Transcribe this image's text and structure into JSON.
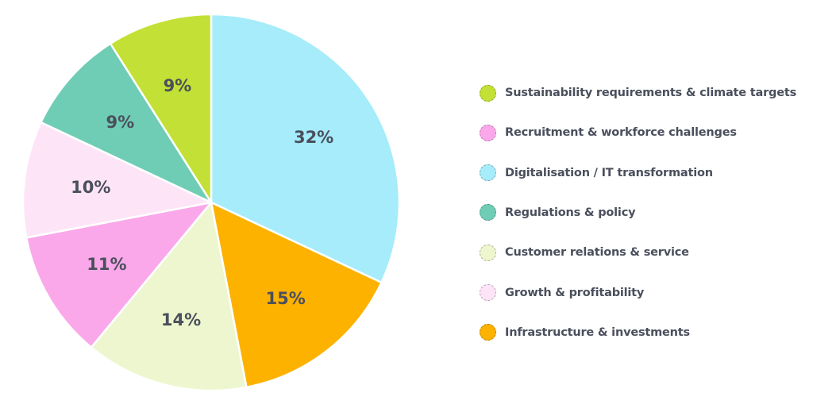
{
  "chart_data": {
    "type": "pie",
    "slices": [
      {
        "label": "Digitalisation / IT transformation",
        "value": 32,
        "value_label": "32%",
        "color": "#a6ecfb"
      },
      {
        "label": "Infrastructure & investments",
        "value": 15,
        "value_label": "15%",
        "color": "#fdb200"
      },
      {
        "label": "Customer relations & service",
        "value": 14,
        "value_label": "14%",
        "color": "#eef6cf"
      },
      {
        "label": "Recruitment & workforce challenges",
        "value": 11,
        "value_label": "11%",
        "color": "#fba8ea"
      },
      {
        "label": "Growth & profitability",
        "value": 10,
        "value_label": "10%",
        "color": "#fde5f7"
      },
      {
        "label": "Regulations & policy",
        "value": 9,
        "value_label": "9%",
        "color": "#6fcdb5"
      },
      {
        "label": "Sustainability requirements & climate targets",
        "value": 9,
        "value_label": "9%",
        "color": "#c2e035"
      }
    ],
    "legend": {
      "placement": "right",
      "entries": [
        {
          "label": "Sustainability requirements & climate targets",
          "color": "#c2e035"
        },
        {
          "label": "Recruitment & workforce challenges",
          "color": "#fba8ea"
        },
        {
          "label": "Digitalisation / IT transformation",
          "color": "#a6ecfb"
        },
        {
          "label": "Regulations & policy",
          "color": "#6fcdb5"
        },
        {
          "label": "Customer relations & service",
          "color": "#eef6cf"
        },
        {
          "label": "Growth & profitability",
          "color": "#fde5f7"
        },
        {
          "label": "Infrastructure & investments",
          "color": "#fdb200"
        }
      ]
    }
  }
}
